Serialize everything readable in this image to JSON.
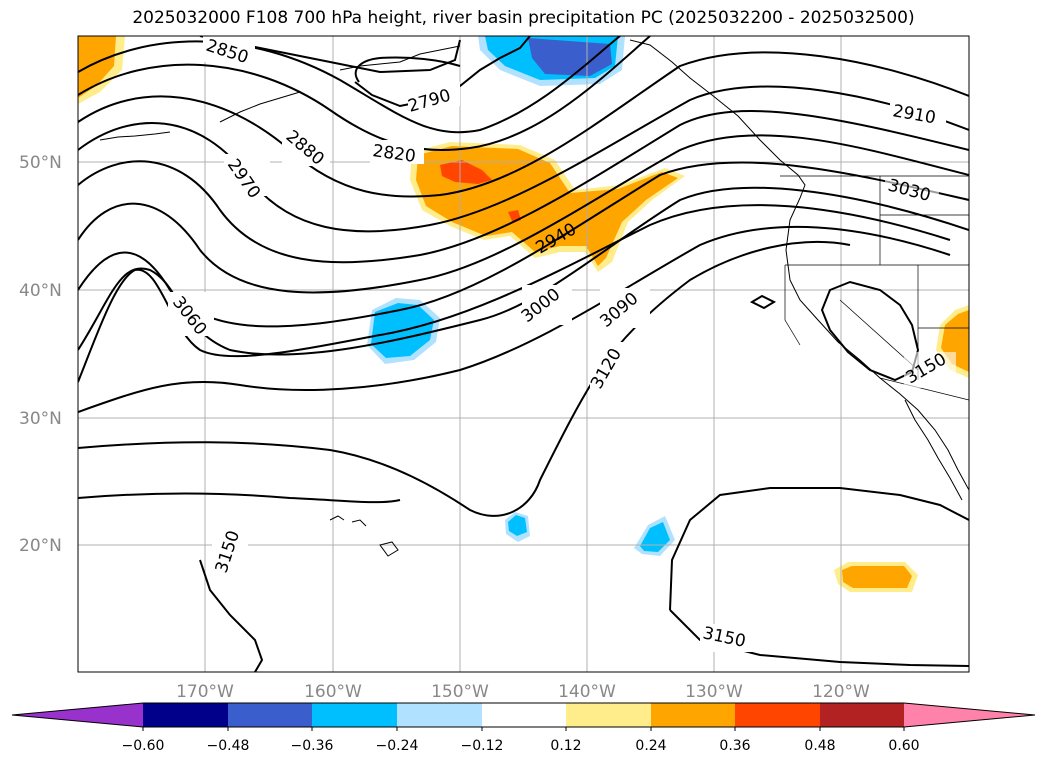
{
  "title": "2025032000 F108 700 hPa height, river basin precipitation PC (2025032200 - 2025032500)",
  "map": {
    "lat_labels": [
      "50°N",
      "40°N",
      "30°N",
      "20°N"
    ],
    "lon_labels": [
      "170°W",
      "160°W",
      "150°W",
      "140°W",
      "130°W",
      "120°W"
    ],
    "contour_labels": [
      "2850",
      "2790",
      "2880",
      "2820",
      "2970",
      "2940",
      "3060",
      "3000",
      "3090",
      "3120",
      "2910",
      "3030",
      "3150",
      "3150",
      "3150"
    ],
    "colors": {
      "grid": "#b0b0b0",
      "contour": "#000000",
      "coast": "#000000"
    }
  },
  "colorbar": {
    "tick_labels": [
      "−0.60",
      "−0.48",
      "−0.36",
      "−0.24",
      "−0.12",
      "0.12",
      "0.24",
      "0.36",
      "0.48",
      "0.60"
    ],
    "colors": [
      "#9932cc",
      "#00008b",
      "#3a5fcd",
      "#00bfff",
      "#b0e2ff",
      "#ffffff",
      "#ffec8b",
      "#ffa500",
      "#ff4500",
      "#b22222",
      "#ff82ab"
    ]
  }
}
